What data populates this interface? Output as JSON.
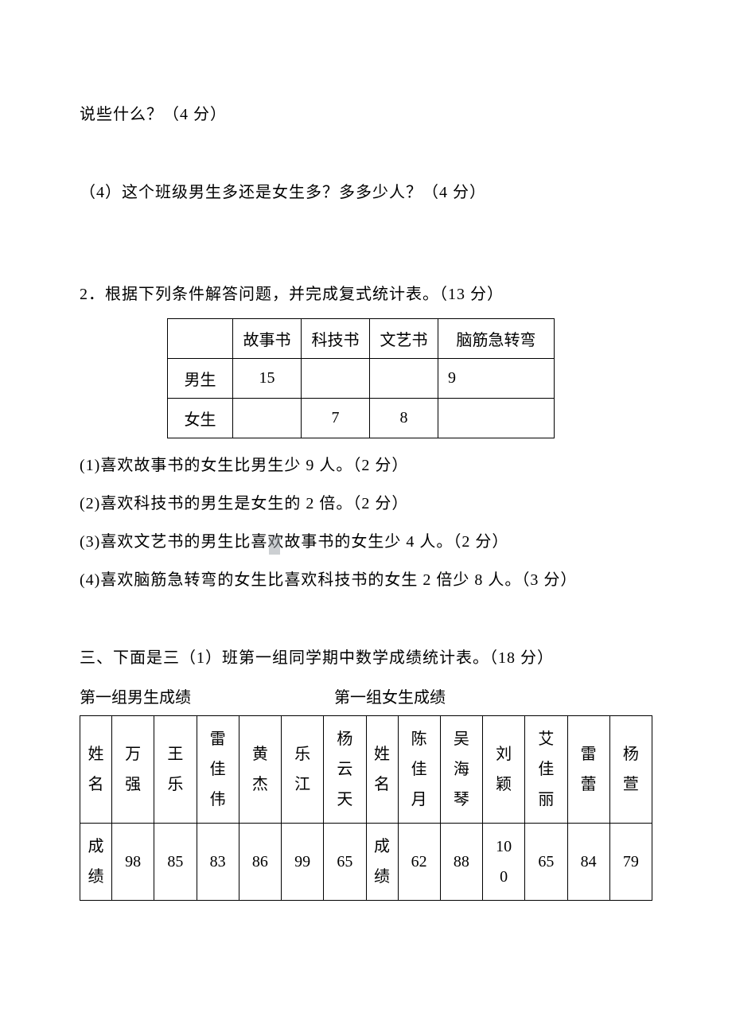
{
  "q_top": "说些什么？（4 分）",
  "q4": "（4）这个班级男生多还是女生多？多多少人？（4 分）",
  "q2_intro": "2．根据下列条件解答问题，并完成复式统计表。（13 分）",
  "books_table": {
    "headers": [
      "",
      "故事书",
      "科技书",
      "文艺书",
      "脑筋急转弯"
    ],
    "rows": [
      {
        "label": "男生",
        "cells": [
          "15",
          "",
          "",
          "9"
        ]
      },
      {
        "label": "女生",
        "cells": [
          "",
          "7",
          "8",
          ""
        ]
      }
    ]
  },
  "q2_1": "(1)喜欢故事书的女生比男生少 9 人。（2 分）",
  "q2_2": "(2)喜欢科技书的男生是女生的 2 倍。（2 分）",
  "q2_3": "(3)喜欢文艺书的男生比喜欢故事书的女生少 4 人。（2 分）",
  "q2_4": "(4)喜欢脑筋急转弯的女生比喜欢科技书的女生 2 倍少 8 人。（3 分）",
  "sec3": "三、下面是三（1）班第一组同学期中数学成绩统计表。（18 分）",
  "label_boys": "第一组男生成绩",
  "label_girls": "第一组女生成绩",
  "scores_table": {
    "header_name": "姓名",
    "header_score": "成绩",
    "boys": {
      "names": [
        "万强",
        "王乐",
        "雷佳伟",
        "黄杰",
        "乐江",
        "杨云天"
      ],
      "scores": [
        "98",
        "85",
        "83",
        "86",
        "99",
        "65"
      ]
    },
    "girls": {
      "names": [
        "陈佳月",
        "吴海琴",
        "刘颖",
        "艾佳丽",
        "雷蕾",
        "杨萱"
      ],
      "scores": [
        "62",
        "88",
        "100",
        "65",
        "84",
        "79"
      ]
    }
  }
}
